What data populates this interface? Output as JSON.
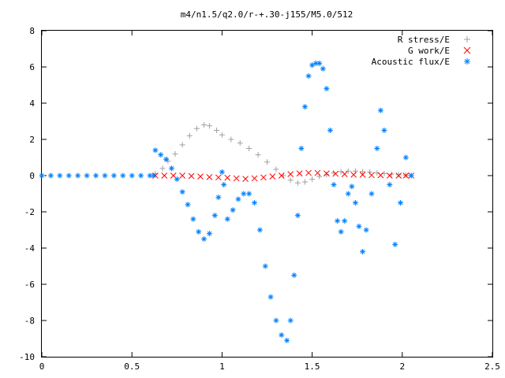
{
  "chart_data": {
    "type": "scatter",
    "title": "m4/n1.5/q2.0/r-+.30-j155/M5.0/512",
    "xlabel": "",
    "ylabel": "",
    "xlim": [
      0,
      2.5
    ],
    "ylim": [
      -10,
      8
    ],
    "grid": false,
    "legend_position": "top-right",
    "x_ticks": [
      "0",
      "0.5",
      "1",
      "1.5",
      "2",
      "2.5"
    ],
    "y_ticks": [
      "-10",
      "-8",
      "-6",
      "-4",
      "-2",
      "0",
      "2",
      "4",
      "6",
      "8"
    ],
    "series": [
      {
        "name": "R stress/E",
        "marker": "+",
        "color": "#a0a0a0",
        "x": [
          0.63,
          0.67,
          0.7,
          0.74,
          0.78,
          0.82,
          0.86,
          0.9,
          0.93,
          0.97,
          1.0,
          1.05,
          1.1,
          1.15,
          1.2,
          1.25,
          1.3,
          1.34,
          1.38,
          1.42,
          1.46,
          1.5,
          1.54,
          1.58,
          1.62,
          1.66,
          1.7,
          1.74,
          1.78,
          1.82,
          1.86,
          1.9,
          1.94,
          1.98,
          2.02,
          2.05
        ],
        "y": [
          0.1,
          0.4,
          0.8,
          1.2,
          1.7,
          2.2,
          2.6,
          2.8,
          2.75,
          2.5,
          2.25,
          2.0,
          1.8,
          1.5,
          1.15,
          0.75,
          0.35,
          0.0,
          -0.25,
          -0.4,
          -0.35,
          -0.2,
          -0.05,
          0.05,
          0.15,
          0.22,
          0.25,
          0.25,
          0.22,
          0.2,
          0.15,
          0.12,
          0.08,
          0.05,
          0.02,
          0.0
        ]
      },
      {
        "name": "G work/E",
        "marker": "x",
        "color": "#ff0000",
        "x": [
          0.63,
          0.68,
          0.73,
          0.78,
          0.83,
          0.88,
          0.93,
          0.98,
          1.03,
          1.08,
          1.13,
          1.18,
          1.23,
          1.28,
          1.33,
          1.38,
          1.43,
          1.48,
          1.53,
          1.58,
          1.63,
          1.68,
          1.73,
          1.78,
          1.83,
          1.88,
          1.93,
          1.98,
          2.02,
          2.05
        ],
        "y": [
          0.0,
          0.0,
          0.0,
          0.0,
          -0.02,
          -0.05,
          -0.08,
          -0.1,
          -0.12,
          -0.15,
          -0.18,
          -0.15,
          -0.1,
          -0.05,
          0.0,
          0.08,
          0.12,
          0.15,
          0.15,
          0.12,
          0.1,
          0.08,
          0.05,
          0.05,
          0.03,
          0.02,
          0.0,
          0.0,
          0.0,
          0.0
        ]
      },
      {
        "name": "Acoustic flux/E",
        "marker": "*",
        "color": "#0080ff",
        "x": [
          0.0,
          0.05,
          0.1,
          0.15,
          0.2,
          0.25,
          0.3,
          0.35,
          0.4,
          0.45,
          0.5,
          0.55,
          0.6,
          0.62,
          0.63,
          0.66,
          0.69,
          0.72,
          0.75,
          0.78,
          0.81,
          0.84,
          0.87,
          0.9,
          0.93,
          0.96,
          0.98,
          1.0,
          1.01,
          1.03,
          1.06,
          1.09,
          1.12,
          1.15,
          1.18,
          1.21,
          1.24,
          1.27,
          1.3,
          1.33,
          1.36,
          1.38,
          1.4,
          1.42,
          1.44,
          1.46,
          1.48,
          1.5,
          1.52,
          1.54,
          1.56,
          1.58,
          1.6,
          1.62,
          1.64,
          1.66,
          1.68,
          1.7,
          1.72,
          1.74,
          1.76,
          1.78,
          1.8,
          1.83,
          1.86,
          1.88,
          1.9,
          1.93,
          1.96,
          1.99,
          2.02,
          2.05
        ],
        "y": [
          0.0,
          0.0,
          0.0,
          0.0,
          0.0,
          0.0,
          0.0,
          0.0,
          0.0,
          0.0,
          0.0,
          0.0,
          0.0,
          0.0,
          1.4,
          1.15,
          0.9,
          0.4,
          -0.2,
          -0.9,
          -1.6,
          -2.4,
          -3.1,
          -3.5,
          -3.2,
          -2.2,
          -1.2,
          0.2,
          -0.5,
          -2.4,
          -1.9,
          -1.3,
          -1.0,
          -1.0,
          -1.5,
          -3.0,
          -5.0,
          -6.7,
          -8.0,
          -8.8,
          -9.1,
          -8.0,
          -5.5,
          -2.2,
          1.5,
          3.8,
          5.5,
          6.1,
          6.2,
          6.2,
          5.9,
          4.8,
          2.5,
          -0.5,
          -2.5,
          -3.1,
          -2.5,
          -1.0,
          -0.6,
          -1.5,
          -2.8,
          -4.2,
          -3.0,
          -1.0,
          1.5,
          3.6,
          2.5,
          -0.5,
          -3.8,
          -1.5,
          1.0,
          0.0
        ]
      }
    ]
  }
}
